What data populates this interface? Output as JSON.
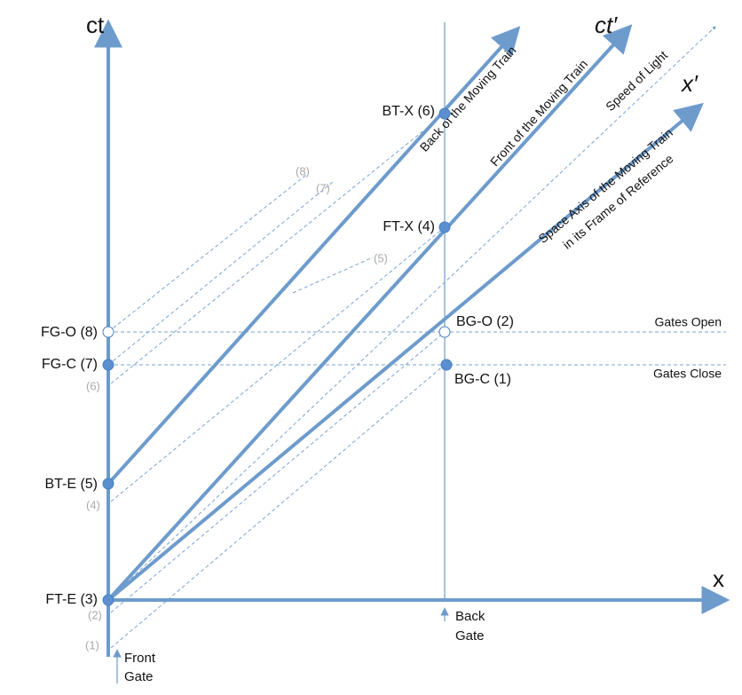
{
  "axes": {
    "ct": "ct",
    "x": "x",
    "ct_prime": "ct′",
    "x_prime": "x′"
  },
  "lines": {
    "back_train": "Back of the Moving Train",
    "front_train": "Front of the Moving Train",
    "light": "Speed of Light",
    "space_axis": [
      "Space Axis of the Moving Train",
      "in its Frame of Reference"
    ]
  },
  "gate_lines": {
    "open": "Gates Open",
    "close": "Gates Close"
  },
  "events": {
    "bt_x": "BT-X (6)",
    "ft_x": "FT-X (4)",
    "bg_o": "BG-O (2)",
    "bg_c": "BG-C (1)",
    "fg_o": "FG-O (8)",
    "fg_c": "FG-C (7)",
    "bt_e": "BT-E (5)",
    "ft_e": "FT-E (3)"
  },
  "light_labels": [
    "(1)",
    "(2)",
    "(4)",
    "(5)",
    "(6)",
    "(7)",
    "(8)"
  ],
  "markers": {
    "back_gate": [
      "Back",
      "Gate"
    ],
    "front_gate": [
      "Front",
      "Gate"
    ]
  }
}
